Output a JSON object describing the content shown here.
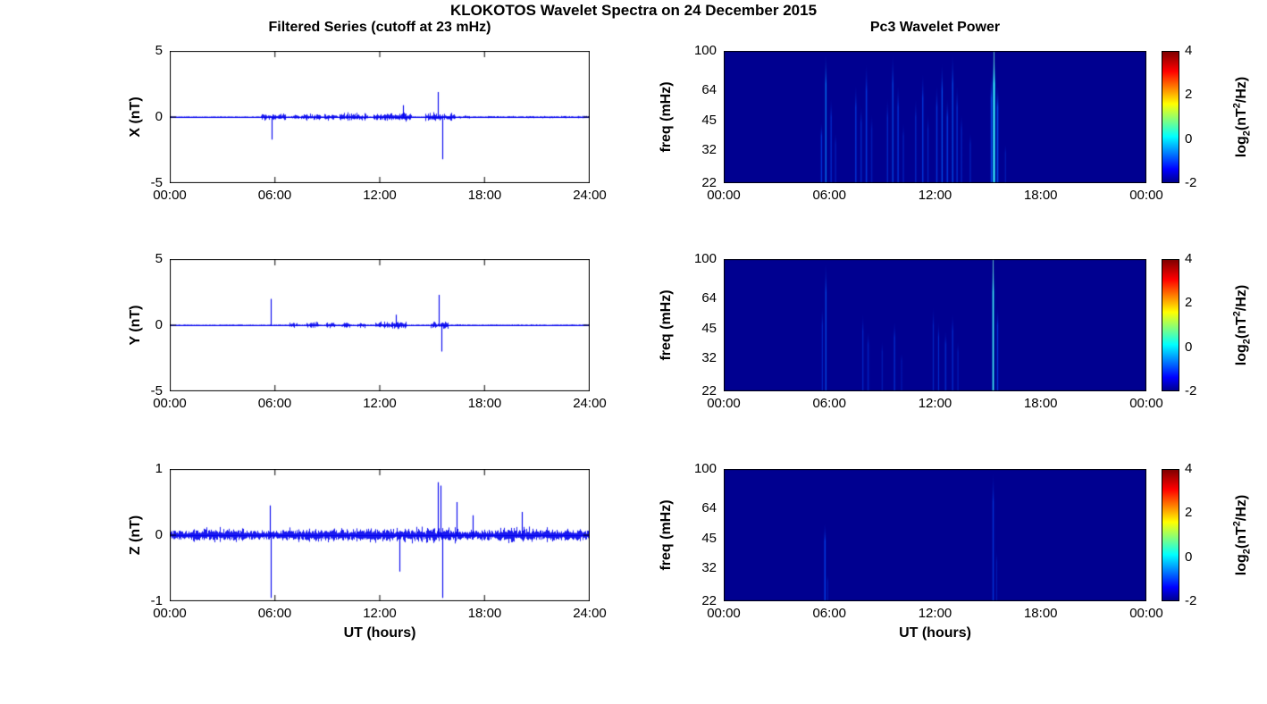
{
  "figure": {
    "title": "KLOKOTOS Wavelet Spectra on 24 December 2015",
    "xlabel": "UT (hours)"
  },
  "colorbar": {
    "label_pre": "log",
    "label_sub": "2",
    "label_mid": "(nT",
    "label_sup": "2",
    "label_post": "/Hz)",
    "ticks": [
      4,
      2,
      0,
      -2
    ],
    "clim": [
      -2,
      4
    ],
    "colors": [
      "#00008f",
      "#0000ff",
      "#00ffff",
      "#ffff00",
      "#ff0000",
      "#800000"
    ]
  },
  "chart_data": [
    {
      "type": "line",
      "title": "Filtered Series (cutoff at 23 mHz)",
      "panel": "X",
      "ylabel": "X (nT)",
      "ylim": [
        -5,
        5
      ],
      "yticks": [
        "5",
        "0",
        "-5"
      ],
      "ytick_values": [
        5,
        0,
        -5
      ],
      "xticks": [
        "00:00",
        "06:00",
        "12:00",
        "18:00",
        "24:00"
      ],
      "xtick_hours": [
        0,
        6,
        12,
        18,
        24
      ],
      "x_range_hours": [
        0,
        24
      ],
      "line_color": "#0000ee",
      "baseline_noise": 0.05,
      "bursts": [
        {
          "start": 5.2,
          "end": 6.6,
          "amp": 0.3
        },
        {
          "start": 6.9,
          "end": 7.4,
          "amp": 0.22
        },
        {
          "start": 7.5,
          "end": 8.6,
          "amp": 0.35
        },
        {
          "start": 8.8,
          "end": 9.6,
          "amp": 0.32
        },
        {
          "start": 9.7,
          "end": 11.3,
          "amp": 0.38
        },
        {
          "start": 11.6,
          "end": 13.8,
          "amp": 0.4
        },
        {
          "start": 14.6,
          "end": 16.3,
          "amp": 0.38
        },
        {
          "start": 16.5,
          "end": 17.2,
          "amp": 0.12
        },
        {
          "start": 18.0,
          "end": 24.0,
          "amp": 0.1
        }
      ],
      "spikes": [
        {
          "t": 5.8,
          "amp": -1.7
        },
        {
          "t": 13.35,
          "amp": 0.9
        },
        {
          "t": 15.3,
          "amp": 1.9
        },
        {
          "t": 15.55,
          "amp": -3.2
        }
      ]
    },
    {
      "type": "heatmap",
      "title": "Pc3 Wavelet Power",
      "panel": "X",
      "ylabel": "freq (mHz)",
      "yticks": [
        "100",
        "64",
        "45",
        "32",
        "22"
      ],
      "ytick_values": [
        100,
        64,
        45,
        32,
        22
      ],
      "freq_range": [
        22,
        100
      ],
      "clim": [
        -2,
        4
      ],
      "xticks": [
        "00:00",
        "06:00",
        "12:00",
        "18:00",
        "00:00"
      ],
      "xtick_hours": [
        0,
        6,
        12,
        18,
        24
      ],
      "x_range_hours": [
        0,
        24
      ],
      "background": "#000090",
      "streaks": [
        {
          "t": 5.55,
          "top_freq": 45,
          "intensity": 0.5
        },
        {
          "t": 5.8,
          "top_freq": 100,
          "intensity": 0.7
        },
        {
          "t": 6.1,
          "top_freq": 60,
          "intensity": 0.4
        },
        {
          "t": 6.35,
          "top_freq": 40,
          "intensity": 0.3
        },
        {
          "t": 7.5,
          "top_freq": 70,
          "intensity": 0.5
        },
        {
          "t": 7.8,
          "top_freq": 55,
          "intensity": 0.4
        },
        {
          "t": 8.1,
          "top_freq": 90,
          "intensity": 0.5
        },
        {
          "t": 8.4,
          "top_freq": 50,
          "intensity": 0.3
        },
        {
          "t": 9.3,
          "top_freq": 60,
          "intensity": 0.4
        },
        {
          "t": 9.6,
          "top_freq": 100,
          "intensity": 0.6
        },
        {
          "t": 9.9,
          "top_freq": 70,
          "intensity": 0.5
        },
        {
          "t": 10.2,
          "top_freq": 45,
          "intensity": 0.3
        },
        {
          "t": 10.9,
          "top_freq": 60,
          "intensity": 0.4
        },
        {
          "t": 11.3,
          "top_freq": 80,
          "intensity": 0.5
        },
        {
          "t": 11.6,
          "top_freq": 50,
          "intensity": 0.4
        },
        {
          "t": 12.1,
          "top_freq": 70,
          "intensity": 0.5
        },
        {
          "t": 12.4,
          "top_freq": 90,
          "intensity": 0.6
        },
        {
          "t": 12.7,
          "top_freq": 60,
          "intensity": 0.5
        },
        {
          "t": 13.0,
          "top_freq": 100,
          "intensity": 0.6
        },
        {
          "t": 13.25,
          "top_freq": 70,
          "intensity": 0.5
        },
        {
          "t": 13.5,
          "top_freq": 50,
          "intensity": 0.4
        },
        {
          "t": 14.0,
          "top_freq": 40,
          "intensity": 0.3
        },
        {
          "t": 15.2,
          "top_freq": 80,
          "intensity": 0.6
        },
        {
          "t": 15.35,
          "top_freq": 100,
          "intensity": 0.95
        },
        {
          "t": 15.55,
          "top_freq": 70,
          "intensity": 0.6
        },
        {
          "t": 16.0,
          "top_freq": 35,
          "intensity": 0.3
        }
      ]
    },
    {
      "type": "line",
      "panel": "Y",
      "ylabel": "Y (nT)",
      "ylim": [
        -5,
        5
      ],
      "yticks": [
        "5",
        "0",
        "-5"
      ],
      "ytick_values": [
        5,
        0,
        -5
      ],
      "xticks": [
        "00:00",
        "06:00",
        "12:00",
        "18:00",
        "24:00"
      ],
      "xtick_hours": [
        0,
        6,
        12,
        18,
        24
      ],
      "x_range_hours": [
        0,
        24
      ],
      "line_color": "#0000ee",
      "baseline_noise": 0.05,
      "bursts": [
        {
          "start": 6.8,
          "end": 7.3,
          "amp": 0.25
        },
        {
          "start": 7.8,
          "end": 8.5,
          "amp": 0.3
        },
        {
          "start": 8.9,
          "end": 9.4,
          "amp": 0.25
        },
        {
          "start": 9.8,
          "end": 10.3,
          "amp": 0.28
        },
        {
          "start": 10.7,
          "end": 11.2,
          "amp": 0.25
        },
        {
          "start": 11.7,
          "end": 13.5,
          "amp": 0.32
        },
        {
          "start": 14.9,
          "end": 15.9,
          "amp": 0.3
        },
        {
          "start": 16.2,
          "end": 16.6,
          "amp": 0.12
        },
        {
          "start": 18.0,
          "end": 24.0,
          "amp": 0.07
        }
      ],
      "spikes": [
        {
          "t": 5.78,
          "amp": 2.0
        },
        {
          "t": 12.9,
          "amp": 0.8
        },
        {
          "t": 15.35,
          "amp": 2.3
        },
        {
          "t": 15.5,
          "amp": -2.0
        }
      ]
    },
    {
      "type": "heatmap",
      "panel": "Y",
      "ylabel": "freq (mHz)",
      "yticks": [
        "100",
        "64",
        "45",
        "32",
        "22"
      ],
      "ytick_values": [
        100,
        64,
        45,
        32,
        22
      ],
      "freq_range": [
        22,
        100
      ],
      "clim": [
        -2,
        4
      ],
      "xticks": [
        "00:00",
        "06:00",
        "12:00",
        "18:00",
        "00:00"
      ],
      "xtick_hours": [
        0,
        6,
        12,
        18,
        24
      ],
      "x_range_hours": [
        0,
        24
      ],
      "background": "#000090",
      "streaks": [
        {
          "t": 5.6,
          "top_freq": 60,
          "intensity": 0.4
        },
        {
          "t": 5.8,
          "top_freq": 100,
          "intensity": 0.6
        },
        {
          "t": 7.9,
          "top_freq": 55,
          "intensity": 0.4
        },
        {
          "t": 8.2,
          "top_freq": 45,
          "intensity": 0.35
        },
        {
          "t": 9.0,
          "top_freq": 40,
          "intensity": 0.3
        },
        {
          "t": 9.7,
          "top_freq": 50,
          "intensity": 0.4
        },
        {
          "t": 10.1,
          "top_freq": 35,
          "intensity": 0.3
        },
        {
          "t": 11.9,
          "top_freq": 60,
          "intensity": 0.4
        },
        {
          "t": 12.2,
          "top_freq": 50,
          "intensity": 0.45
        },
        {
          "t": 12.6,
          "top_freq": 45,
          "intensity": 0.4
        },
        {
          "t": 13.0,
          "top_freq": 55,
          "intensity": 0.4
        },
        {
          "t": 13.3,
          "top_freq": 40,
          "intensity": 0.3
        },
        {
          "t": 15.3,
          "top_freq": 100,
          "intensity": 0.95
        },
        {
          "t": 15.55,
          "top_freq": 60,
          "intensity": 0.5
        }
      ]
    },
    {
      "type": "line",
      "panel": "Z",
      "ylabel": "Z (nT)",
      "ylim": [
        -1,
        1
      ],
      "yticks": [
        "1",
        "0",
        "-1"
      ],
      "ytick_values": [
        1,
        0,
        -1
      ],
      "xticks": [
        "00:00",
        "06:00",
        "12:00",
        "18:00",
        "24:00"
      ],
      "xtick_hours": [
        0,
        6,
        12,
        18,
        24
      ],
      "x_range_hours": [
        0,
        24
      ],
      "line_color": "#0000ee",
      "baseline_noise": 0.07,
      "bursts": [
        {
          "start": 1.3,
          "end": 4.3,
          "amp": 0.13
        },
        {
          "start": 4.9,
          "end": 5.6,
          "amp": 0.1
        },
        {
          "start": 6.3,
          "end": 9.0,
          "amp": 0.12
        },
        {
          "start": 9.0,
          "end": 13.0,
          "amp": 0.13
        },
        {
          "start": 13.0,
          "end": 16.6,
          "amp": 0.14
        },
        {
          "start": 16.9,
          "end": 18.3,
          "amp": 0.1
        },
        {
          "start": 18.6,
          "end": 22.0,
          "amp": 0.14
        },
        {
          "start": 22.0,
          "end": 24.0,
          "amp": 0.1
        }
      ],
      "spikes": [
        {
          "t": 5.72,
          "amp": 0.45
        },
        {
          "t": 5.75,
          "amp": -0.95
        },
        {
          "t": 13.1,
          "amp": -0.55
        },
        {
          "t": 15.3,
          "amp": 0.8
        },
        {
          "t": 15.45,
          "amp": 0.75
        },
        {
          "t": 15.55,
          "amp": -0.95
        },
        {
          "t": 16.4,
          "amp": 0.5
        },
        {
          "t": 17.3,
          "amp": 0.3
        },
        {
          "t": 20.1,
          "amp": 0.35
        }
      ]
    },
    {
      "type": "heatmap",
      "panel": "Z",
      "ylabel": "freq (mHz)",
      "yticks": [
        "100",
        "64",
        "45",
        "32",
        "22"
      ],
      "ytick_values": [
        100,
        64,
        45,
        32,
        22
      ],
      "freq_range": [
        22,
        100
      ],
      "clim": [
        -2,
        4
      ],
      "xticks": [
        "00:00",
        "06:00",
        "12:00",
        "18:00",
        "00:00"
      ],
      "xtick_hours": [
        0,
        6,
        12,
        18,
        24
      ],
      "x_range_hours": [
        0,
        24
      ],
      "background": "#000090",
      "streaks": [
        {
          "t": 5.75,
          "top_freq": 55,
          "intensity": 0.55
        },
        {
          "t": 5.9,
          "top_freq": 30,
          "intensity": 0.3
        },
        {
          "t": 15.3,
          "top_freq": 100,
          "intensity": 0.5
        },
        {
          "t": 15.5,
          "top_freq": 40,
          "intensity": 0.3
        }
      ]
    }
  ]
}
